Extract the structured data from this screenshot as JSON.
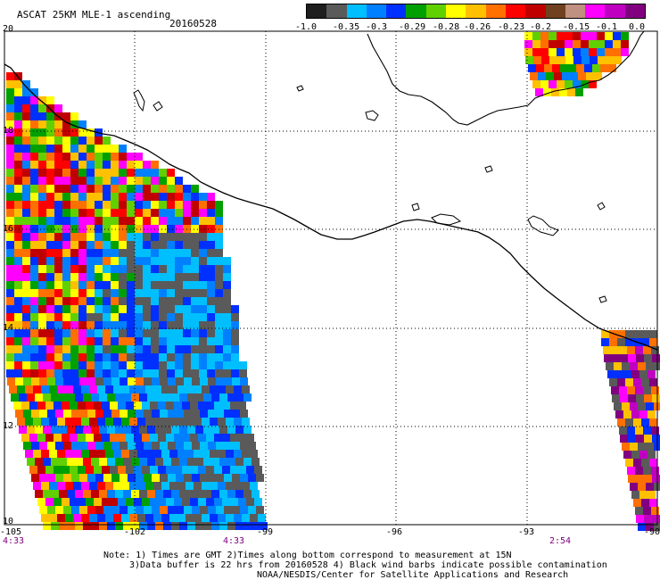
{
  "header": {
    "title": "ASCAT 25KM MLE-1 ascending",
    "date": "20160528"
  },
  "colorbar": {
    "colors": [
      "#1e1e1e",
      "#5a5a5a",
      "#00bfff",
      "#0080ff",
      "#0030ff",
      "#00a000",
      "#60d000",
      "#ffff00",
      "#ffc000",
      "#ff7000",
      "#ff0000",
      "#c00000",
      "#704020",
      "#c09080",
      "#ff00ff",
      "#c000c0",
      "#800080"
    ],
    "labels": [
      "-1.0",
      "-0.35",
      "-0.3",
      "-0.29",
      "-0.28",
      "-0.26",
      "-0.23",
      "-0.2",
      "-0.15",
      "-0.1",
      "0.0"
    ]
  },
  "axes": {
    "x_ticks": [
      "-105",
      "-102",
      "-99",
      "-96",
      "-93",
      "-90"
    ],
    "y_ticks": [
      "20",
      "18",
      "16",
      "14",
      "12",
      "10"
    ],
    "times": [
      "4:33",
      "4:33",
      "2:54"
    ]
  },
  "notes": {
    "line1": "Note: 1) Times are GMT 2)Times along bottom correspond to measurement at 15N",
    "line2": "3)Data buffer is 22 hrs from 20160528 4) Black wind barbs indicate possible contamination",
    "line3": "NOAA/NESDIS/Center for Satellite Applications and Research"
  }
}
